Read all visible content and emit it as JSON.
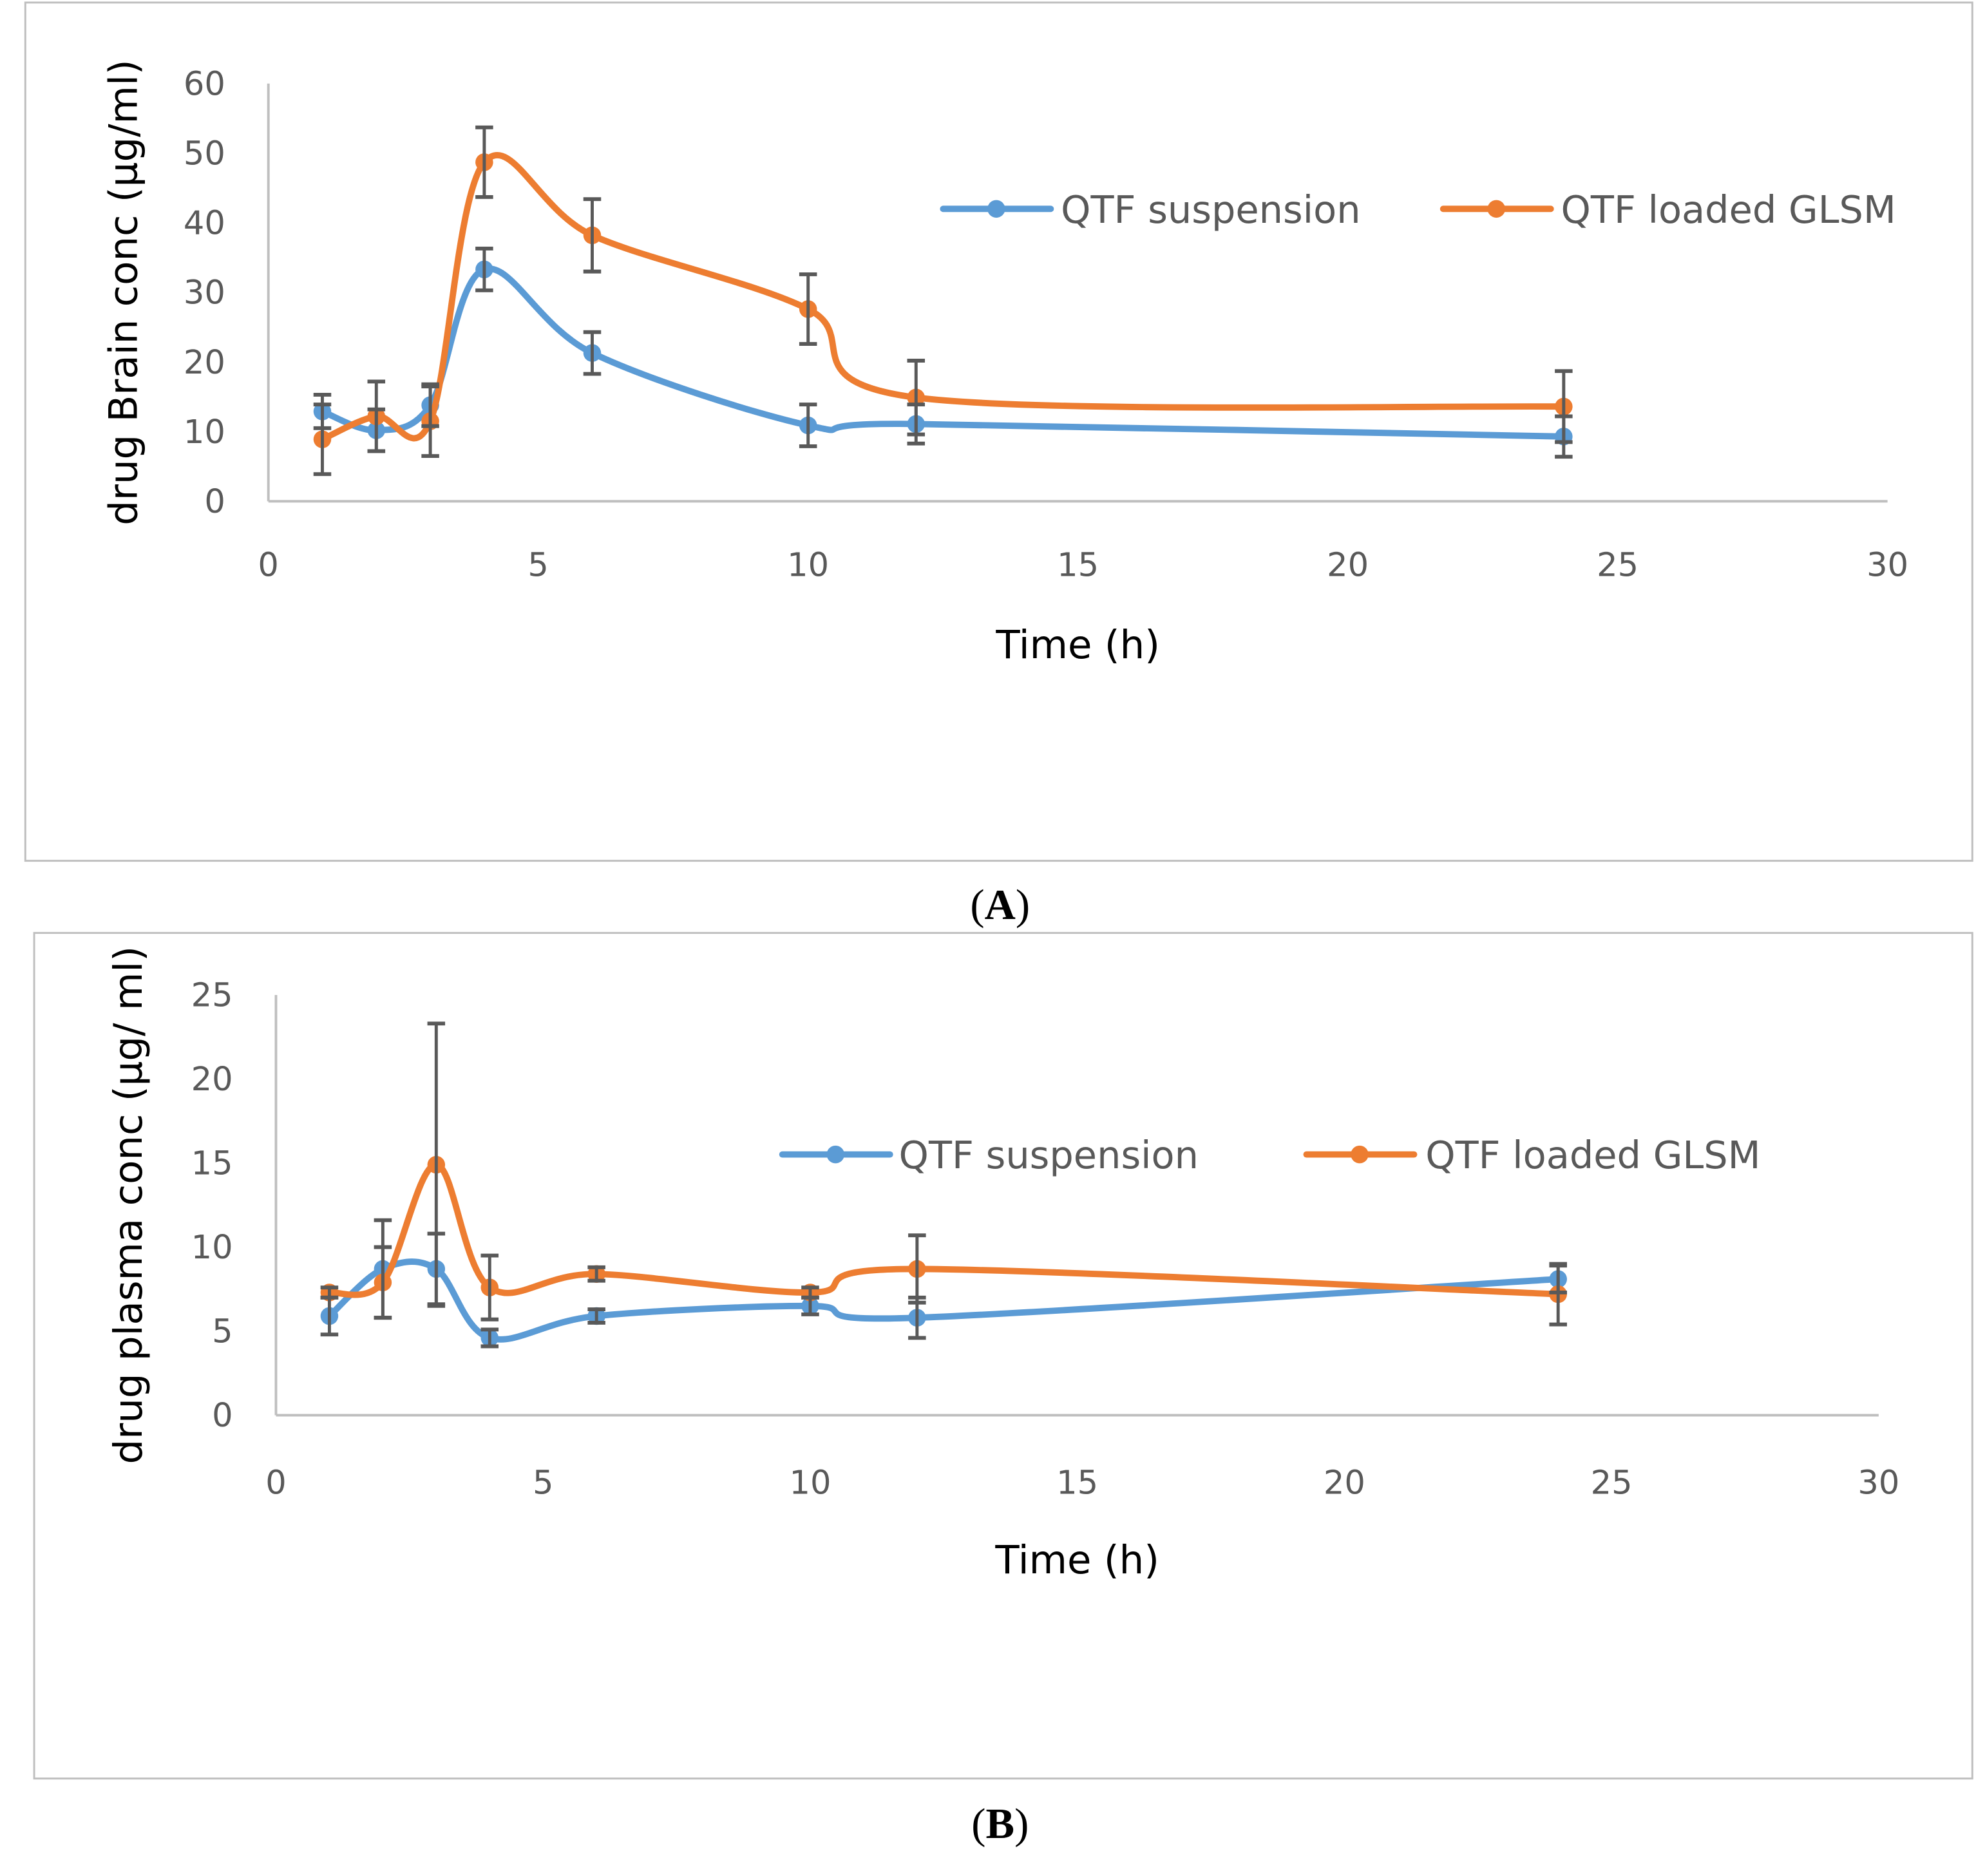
{
  "colors": {
    "suspension": "#5B9BD5",
    "glsm": "#ED7D31",
    "error_bar": "#595959",
    "axis": "#BFBFBF"
  },
  "chart_data": [
    {
      "type": "line",
      "panel_label": "A",
      "title": "",
      "xlabel": "Time (h)",
      "ylabel": "drug Brain conc (µg/ml)",
      "xlim": [
        0,
        30
      ],
      "ylim": [
        0,
        60
      ],
      "xticks": [
        0,
        5,
        10,
        15,
        20,
        25,
        30
      ],
      "yticks": [
        0,
        10,
        20,
        30,
        40,
        50,
        60
      ],
      "grid": false,
      "legend_position": "top-right",
      "x": [
        1,
        2,
        3,
        4,
        6,
        10,
        12,
        24
      ],
      "series": [
        {
          "name": "QTF suspension",
          "color": "#5B9BD5",
          "values": [
            12.9,
            10.2,
            13.8,
            33.3,
            21.3,
            10.9,
            11.1,
            9.3
          ],
          "errors": [
            2.4,
            3.0,
            3.0,
            3.0,
            3.0,
            3.0,
            2.8,
            2.9
          ]
        },
        {
          "name": "QTF loaded GLSM",
          "color": "#ED7D31",
          "values": [
            8.9,
            12.2,
            11.5,
            48.7,
            38.2,
            27.6,
            14.9,
            13.6
          ],
          "errors": [
            5.0,
            5.0,
            5.0,
            5.0,
            5.2,
            5.0,
            5.3,
            5.1
          ]
        }
      ]
    },
    {
      "type": "line",
      "panel_label": "B",
      "title": "",
      "xlabel": "Time (h)",
      "ylabel": "drug plasma conc (µg/ ml)",
      "xlim": [
        0,
        30
      ],
      "ylim": [
        0,
        25
      ],
      "xticks": [
        0,
        5,
        10,
        15,
        20,
        25,
        30
      ],
      "yticks": [
        0,
        5,
        10,
        15,
        20,
        25
      ],
      "grid": false,
      "legend_position": "top-right",
      "x": [
        1,
        2,
        3,
        4,
        6,
        10,
        12,
        24
      ],
      "series": [
        {
          "name": "QTF suspension",
          "color": "#5B9BD5",
          "values": [
            5.9,
            8.7,
            8.7,
            4.6,
            5.9,
            6.5,
            5.8,
            8.1
          ],
          "errors": [
            1.1,
            2.9,
            2.1,
            0.5,
            0.4,
            0.5,
            1.2,
            0.8
          ]
        },
        {
          "name": "QTF loaded GLSM",
          "color": "#ED7D31",
          "values": [
            7.3,
            7.9,
            14.9,
            7.6,
            8.4,
            7.3,
            8.7,
            7.2
          ],
          "errors": [
            0.3,
            2.1,
            8.4,
            1.9,
            0.4,
            0.3,
            2.0,
            1.8
          ]
        }
      ]
    }
  ]
}
